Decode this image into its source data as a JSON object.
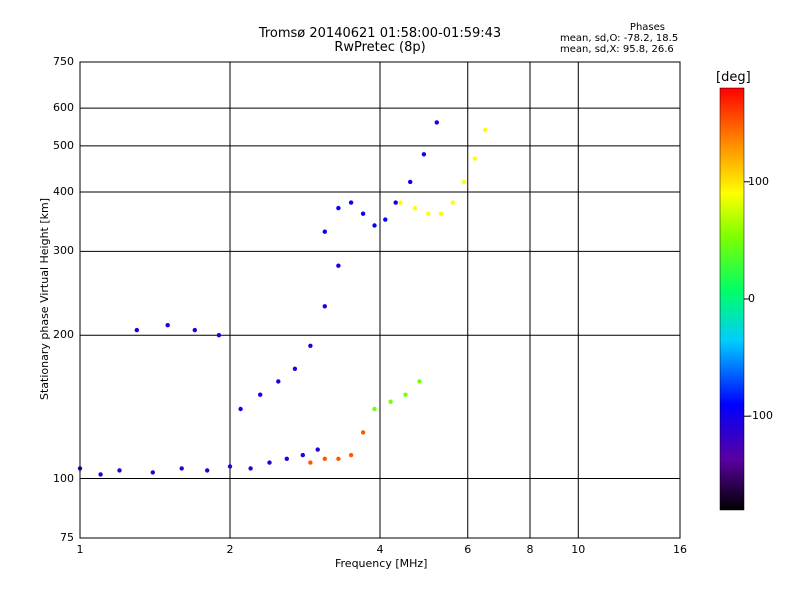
{
  "chart_data": {
    "type": "scatter",
    "title": "Tromsø 20140621 01:58:00-01:59:43",
    "subtitle": "RwPretec (8p)",
    "xlabel": "Frequency [MHz]",
    "ylabel": "Stationary phase Virtual Height [km]",
    "xscale": "log",
    "yscale": "log",
    "xlim": [
      1,
      16
    ],
    "ylim": [
      75,
      750
    ],
    "x_ticks": [
      1,
      2,
      4,
      6,
      8,
      10,
      16
    ],
    "y_ticks": [
      75,
      100,
      200,
      300,
      400,
      500,
      600,
      750
    ],
    "stats": {
      "title": "Phases",
      "line_o": "mean, sd,O: -78.2, 18.5",
      "line_x": "mean, sd,X:  95.8, 26.6"
    },
    "colorbar": {
      "unit": "[deg]",
      "range": [
        -180,
        180
      ],
      "ticks": [
        100,
        0,
        -100
      ],
      "tick_labels": [
        "100",
        "0",
        "-100"
      ]
    },
    "series": [
      {
        "name": "trace-low-band",
        "x": [
          1.0,
          1.1,
          1.2,
          1.4,
          1.6,
          1.8,
          2.0,
          2.2,
          2.4,
          2.6,
          2.8,
          3.0
        ],
        "y": [
          105,
          102,
          104,
          103,
          105,
          104,
          106,
          105,
          108,
          110,
          112,
          115
        ],
        "phase": -110
      },
      {
        "name": "trace-rising",
        "x": [
          1.3,
          1.5,
          1.7,
          1.9,
          2.1,
          2.3,
          2.5,
          2.7,
          2.9,
          3.1,
          3.3
        ],
        "y": [
          205,
          210,
          205,
          200,
          140,
          150,
          160,
          170,
          190,
          230,
          280
        ],
        "phase": -105
      },
      {
        "name": "trace-f-layer",
        "x": [
          3.1,
          3.3,
          3.5,
          3.7,
          3.9,
          4.1,
          4.3,
          4.6,
          4.9,
          5.2
        ],
        "y": [
          330,
          370,
          380,
          360,
          340,
          350,
          380,
          420,
          480,
          560
        ],
        "phase": -95
      },
      {
        "name": "trace-x-mode",
        "x": [
          4.4,
          4.7,
          5.0,
          5.3,
          5.6,
          5.9,
          6.2,
          6.5
        ],
        "y": [
          380,
          370,
          360,
          360,
          380,
          420,
          470,
          540
        ],
        "phase": 90
      },
      {
        "name": "trace-e-orange",
        "x": [
          2.9,
          3.1,
          3.3,
          3.5,
          3.7
        ],
        "y": [
          108,
          110,
          110,
          112,
          125
        ],
        "phase": 150
      },
      {
        "name": "trace-e-green",
        "x": [
          3.9,
          4.2,
          4.5,
          4.8
        ],
        "y": [
          140,
          145,
          150,
          160
        ],
        "phase": 50
      }
    ]
  }
}
